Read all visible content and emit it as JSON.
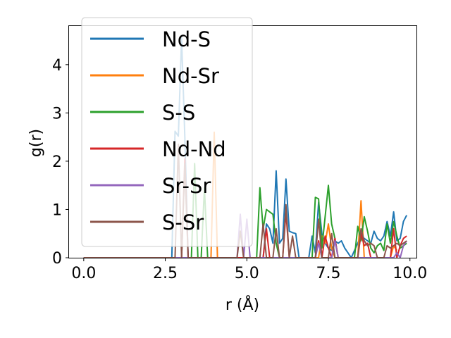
{
  "chart_data": {
    "type": "line",
    "title": "",
    "xlabel": "r (Å)",
    "ylabel": "g(r)",
    "xlim": [
      -0.45,
      10.2
    ],
    "ylim": [
      0,
      4.8
    ],
    "xticks": [
      0.0,
      2.5,
      5.0,
      7.5,
      10.0
    ],
    "xtick_labels": [
      "0.0",
      "2.5",
      "5.0",
      "7.5",
      "10.0"
    ],
    "yticks": [
      0,
      1,
      2,
      3,
      4
    ],
    "ytick_labels": [
      "0",
      "1",
      "2",
      "3",
      "4"
    ],
    "grid": false,
    "legend_position": "upper-left",
    "series": [
      {
        "name": "Nd-S",
        "color": "#1f77b4",
        "points": [
          [
            0,
            0
          ],
          [
            2.7,
            0
          ],
          [
            2.8,
            2.62
          ],
          [
            2.9,
            2.52
          ],
          [
            3.0,
            4.55
          ],
          [
            3.1,
            2.5
          ],
          [
            3.2,
            0
          ],
          [
            5.5,
            0
          ],
          [
            5.6,
            0.7
          ],
          [
            5.7,
            0.6
          ],
          [
            5.8,
            0.3
          ],
          [
            5.9,
            1.8
          ],
          [
            6.0,
            0.3
          ],
          [
            6.1,
            0.4
          ],
          [
            6.2,
            1.63
          ],
          [
            6.3,
            0.55
          ],
          [
            6.4,
            0.52
          ],
          [
            6.5,
            0.5
          ],
          [
            6.6,
            0
          ],
          [
            6.9,
            0
          ],
          [
            7.0,
            0.45
          ],
          [
            7.1,
            0.1
          ],
          [
            7.2,
            1.15
          ],
          [
            7.3,
            0.5
          ],
          [
            7.4,
            0.3
          ],
          [
            7.5,
            0.2
          ],
          [
            7.6,
            0.15
          ],
          [
            7.7,
            0.35
          ],
          [
            7.8,
            0.3
          ],
          [
            7.9,
            0.35
          ],
          [
            8.0,
            0.2
          ],
          [
            8.1,
            0.1
          ],
          [
            8.2,
            0.0
          ],
          [
            8.4,
            0.3
          ],
          [
            8.5,
            0.45
          ],
          [
            8.6,
            0.4
          ],
          [
            8.7,
            0.35
          ],
          [
            8.8,
            0.3
          ],
          [
            8.9,
            0.55
          ],
          [
            9.0,
            0.4
          ],
          [
            9.1,
            0.35
          ],
          [
            9.2,
            0.45
          ],
          [
            9.3,
            0.75
          ],
          [
            9.4,
            0.45
          ],
          [
            9.5,
            0.95
          ],
          [
            9.6,
            0.35
          ],
          [
            9.7,
            0.4
          ],
          [
            9.8,
            0.75
          ],
          [
            9.9,
            0.88
          ]
        ]
      },
      {
        "name": "Nd-Sr",
        "color": "#ff7f0e",
        "points": [
          [
            0,
            0
          ],
          [
            3.9,
            0
          ],
          [
            4.0,
            2.6
          ],
          [
            4.1,
            0
          ],
          [
            7.2,
            0
          ],
          [
            7.3,
            0.45
          ],
          [
            7.4,
            0.3
          ],
          [
            7.5,
            0.7
          ],
          [
            7.6,
            0.2
          ],
          [
            7.7,
            0
          ],
          [
            8.4,
            0
          ],
          [
            8.5,
            1.18
          ],
          [
            8.6,
            0
          ],
          [
            9.4,
            0
          ],
          [
            9.5,
            0.25
          ],
          [
            9.6,
            0.15
          ]
        ]
      },
      {
        "name": "S-S",
        "color": "#2ca02c",
        "points": [
          [
            0,
            0
          ],
          [
            3.3,
            0
          ],
          [
            3.4,
            1.95
          ],
          [
            3.5,
            0
          ],
          [
            3.6,
            0
          ],
          [
            3.7,
            1.45
          ],
          [
            3.8,
            0
          ],
          [
            5.3,
            0
          ],
          [
            5.4,
            1.45
          ],
          [
            5.5,
            0.6
          ],
          [
            5.6,
            1.0
          ],
          [
            5.7,
            0.95
          ],
          [
            5.8,
            0.9
          ],
          [
            5.9,
            0.3
          ],
          [
            6.0,
            0
          ],
          [
            7.0,
            0
          ],
          [
            7.1,
            1.25
          ],
          [
            7.2,
            1.22
          ],
          [
            7.3,
            0.2
          ],
          [
            7.4,
            0.85
          ],
          [
            7.5,
            1.5
          ],
          [
            7.6,
            0.7
          ],
          [
            7.7,
            0.4
          ],
          [
            7.8,
            0
          ],
          [
            8.3,
            0
          ],
          [
            8.4,
            0.65
          ],
          [
            8.5,
            0.35
          ],
          [
            8.6,
            0.85
          ],
          [
            8.7,
            0.55
          ],
          [
            8.8,
            0.2
          ],
          [
            8.9,
            0.1
          ],
          [
            9.0,
            0.25
          ],
          [
            9.1,
            0.3
          ],
          [
            9.2,
            0.15
          ],
          [
            9.3,
            0.7
          ],
          [
            9.4,
            0.3
          ],
          [
            9.5,
            0.75
          ],
          [
            9.6,
            0.45
          ],
          [
            9.7,
            0.2
          ],
          [
            9.8,
            0.25
          ],
          [
            9.9,
            0.3
          ]
        ]
      },
      {
        "name": "Nd-Nd",
        "color": "#d62728",
        "points": [
          [
            0,
            0
          ],
          [
            3.0,
            0
          ],
          [
            3.1,
            2.05
          ],
          [
            3.2,
            0
          ],
          [
            5.5,
            0
          ],
          [
            5.6,
            0.6
          ],
          [
            5.7,
            0
          ],
          [
            6.1,
            0
          ],
          [
            6.2,
            0.95
          ],
          [
            6.3,
            0
          ],
          [
            7.1,
            0
          ],
          [
            7.2,
            0.35
          ],
          [
            7.3,
            0
          ],
          [
            7.4,
            0.45
          ],
          [
            7.5,
            0.2
          ],
          [
            7.6,
            0
          ],
          [
            7.7,
            0.4
          ],
          [
            7.8,
            0
          ],
          [
            8.4,
            0
          ],
          [
            8.5,
            0.5
          ],
          [
            8.6,
            0.25
          ],
          [
            8.7,
            0.3
          ],
          [
            8.8,
            0
          ],
          [
            9.4,
            0
          ],
          [
            9.5,
            0.6
          ],
          [
            9.6,
            0
          ],
          [
            9.7,
            0.25
          ],
          [
            9.8,
            0.4
          ],
          [
            9.9,
            0.45
          ]
        ]
      },
      {
        "name": "Sr-Sr",
        "color": "#9467bd",
        "points": [
          [
            0,
            0
          ],
          [
            4.7,
            0
          ],
          [
            4.8,
            0.9
          ],
          [
            4.9,
            0
          ],
          [
            5.0,
            0.8
          ],
          [
            5.1,
            0
          ],
          [
            7.1,
            0
          ],
          [
            7.2,
            0.3
          ],
          [
            7.3,
            0
          ],
          [
            7.6,
            0
          ],
          [
            7.7,
            0.35
          ],
          [
            7.8,
            0
          ],
          [
            9.5,
            0
          ],
          [
            9.6,
            0.1
          ],
          [
            9.7,
            0
          ],
          [
            9.8,
            0.25
          ],
          [
            9.9,
            0.35
          ]
        ]
      },
      {
        "name": "S-Sr",
        "color": "#8c564b",
        "points": [
          [
            0,
            0
          ],
          [
            2.8,
            0
          ],
          [
            2.9,
            2.35
          ],
          [
            3.0,
            0
          ],
          [
            3.1,
            1.95
          ],
          [
            3.2,
            0
          ],
          [
            4.7,
            0
          ],
          [
            4.8,
            0.55
          ],
          [
            4.9,
            0
          ],
          [
            5.4,
            0
          ],
          [
            5.5,
            0.7
          ],
          [
            5.6,
            0
          ],
          [
            5.8,
            0
          ],
          [
            5.9,
            0.6
          ],
          [
            6.0,
            0
          ],
          [
            6.1,
            0
          ],
          [
            6.2,
            1.1
          ],
          [
            6.3,
            0
          ],
          [
            6.4,
            0.45
          ],
          [
            6.5,
            0
          ],
          [
            7.1,
            0
          ],
          [
            7.2,
            0.8
          ],
          [
            7.3,
            0
          ],
          [
            7.5,
            0
          ],
          [
            7.6,
            0.5
          ],
          [
            7.7,
            0
          ],
          [
            8.4,
            0
          ],
          [
            8.5,
            0.6
          ],
          [
            8.6,
            0.35
          ],
          [
            8.7,
            0.25
          ],
          [
            8.8,
            0.3
          ],
          [
            8.9,
            0.25
          ],
          [
            9.0,
            0
          ],
          [
            9.2,
            0
          ],
          [
            9.3,
            0.25
          ],
          [
            9.4,
            0.2
          ],
          [
            9.5,
            0.25
          ],
          [
            9.6,
            0.3
          ],
          [
            9.7,
            0.25
          ],
          [
            9.8,
            0.3
          ],
          [
            9.9,
            0.35
          ]
        ]
      }
    ]
  }
}
